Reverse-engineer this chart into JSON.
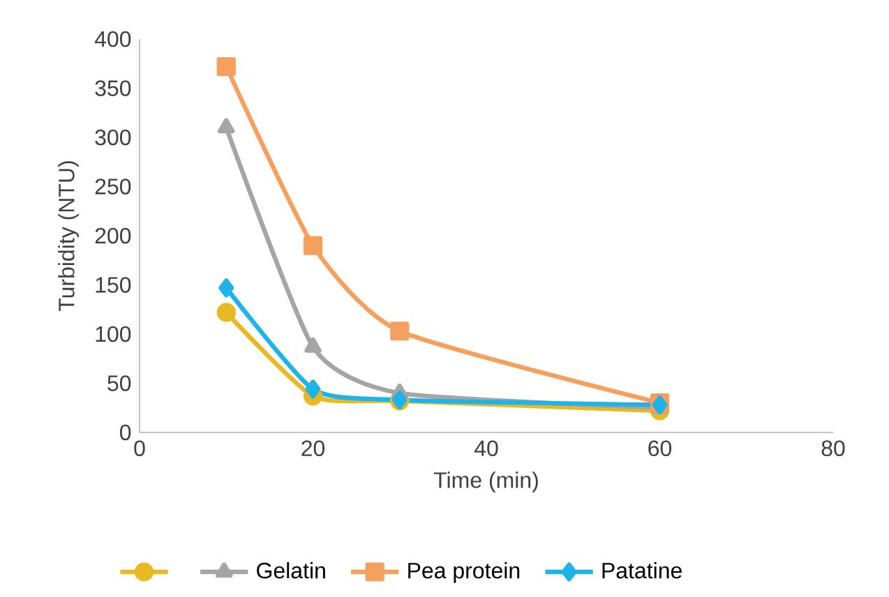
{
  "chart_data": {
    "type": "line",
    "xlabel": "Time (min)",
    "ylabel": "Turbidity (NTU)",
    "x": [
      10,
      20,
      30,
      60
    ],
    "series": [
      {
        "color": "#e8b923",
        "marker": "circle",
        "values": [
          122,
          37,
          32,
          22
        ]
      },
      {
        "name": "Gelatin",
        "color": "#a5a5a5",
        "marker": "triangle",
        "values": [
          310,
          87,
          40,
          25
        ]
      },
      {
        "name": "Pea protein",
        "color": "#f5a05f",
        "marker": "square",
        "values": [
          372,
          190,
          103,
          30
        ]
      },
      {
        "name": "Patatine",
        "color": "#1fb3e8",
        "marker": "diamond",
        "values": [
          147,
          44,
          33,
          28
        ]
      }
    ],
    "xlim": [
      0,
      80
    ],
    "xticks": [
      0,
      20,
      40,
      60,
      80
    ],
    "ylim": [
      0,
      400
    ],
    "yticks": [
      0,
      50,
      100,
      150,
      200,
      250,
      300,
      350,
      400
    ],
    "grid": false,
    "legend": "bottom",
    "line_style": "solid"
  }
}
